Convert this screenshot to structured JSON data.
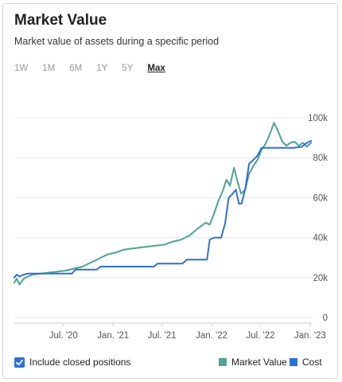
{
  "header": {
    "title": "Market Value",
    "subtitle": "Market value of assets during a specific period"
  },
  "ranges": [
    {
      "label": "1W",
      "active": false
    },
    {
      "label": "1M",
      "active": false
    },
    {
      "label": "6M",
      "active": false
    },
    {
      "label": "1Y",
      "active": false
    },
    {
      "label": "5Y",
      "active": false
    },
    {
      "label": "Max",
      "active": true
    }
  ],
  "footer": {
    "include_closed_label": "Include closed positions",
    "include_closed_checked": true
  },
  "colors": {
    "market_value": "#4ea393",
    "cost": "#2f6fd6",
    "grid": "#e8e8e8",
    "axis_text": "#555555"
  },
  "chart_data": {
    "type": "line",
    "xlabel": "",
    "ylabel": "",
    "ylim": [
      0,
      100000
    ],
    "yticks": [
      0,
      20000,
      40000,
      60000,
      80000,
      100000
    ],
    "ytick_labels": [
      "0",
      "20k",
      "40k",
      "60k",
      "80k",
      "100k"
    ],
    "xlim": [
      "2020-01-01",
      "2023-01-10"
    ],
    "xticks": [
      "2020-07-01",
      "2021-01-01",
      "2021-07-01",
      "2022-01-01",
      "2022-07-01",
      "2023-01-01"
    ],
    "xtick_labels": [
      "Jul. '20",
      "Jan. '21",
      "Jul. '21",
      "Jan. '22",
      "Jul. '22",
      "Jan. '23"
    ],
    "legend_position": "bottom-right",
    "grid": true,
    "series": [
      {
        "name": "Market Value",
        "color": "#4ea393",
        "points": [
          [
            "2020-01-01",
            17500
          ],
          [
            "2020-01-10",
            19500
          ],
          [
            "2020-01-20",
            16500
          ],
          [
            "2020-02-05",
            19500
          ],
          [
            "2020-02-20",
            20500
          ],
          [
            "2020-03-10",
            21500
          ],
          [
            "2020-04-10",
            22000
          ],
          [
            "2020-05-10",
            22500
          ],
          [
            "2020-06-10",
            23000
          ],
          [
            "2020-07-10",
            23500
          ],
          [
            "2020-08-10",
            24500
          ],
          [
            "2020-09-10",
            25500
          ],
          [
            "2020-10-10",
            27500
          ],
          [
            "2020-11-10",
            29500
          ],
          [
            "2020-12-10",
            31500
          ],
          [
            "2021-01-10",
            32500
          ],
          [
            "2021-02-10",
            34000
          ],
          [
            "2021-03-10",
            34500
          ],
          [
            "2021-04-10",
            35000
          ],
          [
            "2021-05-10",
            35500
          ],
          [
            "2021-06-10",
            36000
          ],
          [
            "2021-07-10",
            36500
          ],
          [
            "2021-08-10",
            38000
          ],
          [
            "2021-09-10",
            39000
          ],
          [
            "2021-10-10",
            41000
          ],
          [
            "2021-11-10",
            44500
          ],
          [
            "2021-12-10",
            47500
          ],
          [
            "2021-12-25",
            46500
          ],
          [
            "2022-01-10",
            52000
          ],
          [
            "2022-01-25",
            58000
          ],
          [
            "2022-02-10",
            63000
          ],
          [
            "2022-02-25",
            69000
          ],
          [
            "2022-03-10",
            66000
          ],
          [
            "2022-03-25",
            75000
          ],
          [
            "2022-04-05",
            69000
          ],
          [
            "2022-04-20",
            62000
          ],
          [
            "2022-05-05",
            64000
          ],
          [
            "2022-05-20",
            72000
          ],
          [
            "2022-06-05",
            76000
          ],
          [
            "2022-06-20",
            79000
          ],
          [
            "2022-07-05",
            84000
          ],
          [
            "2022-07-20",
            87000
          ],
          [
            "2022-08-05",
            92000
          ],
          [
            "2022-08-20",
            97500
          ],
          [
            "2022-09-05",
            93000
          ],
          [
            "2022-09-20",
            88000
          ],
          [
            "2022-10-05",
            86000
          ],
          [
            "2022-10-20",
            87500
          ],
          [
            "2022-11-05",
            88000
          ],
          [
            "2022-11-20",
            86000
          ],
          [
            "2022-12-05",
            87500
          ],
          [
            "2022-12-20",
            85500
          ],
          [
            "2023-01-05",
            87500
          ]
        ]
      },
      {
        "name": "Cost",
        "color": "#2f6fd6",
        "points": [
          [
            "2020-01-01",
            20000
          ],
          [
            "2020-01-10",
            21500
          ],
          [
            "2020-01-20",
            20500
          ],
          [
            "2020-02-05",
            21500
          ],
          [
            "2020-02-20",
            22000
          ],
          [
            "2020-04-01",
            22000
          ],
          [
            "2020-08-01",
            22000
          ],
          [
            "2020-08-15",
            24000
          ],
          [
            "2020-11-01",
            24000
          ],
          [
            "2020-11-15",
            25500
          ],
          [
            "2021-02-15",
            25500
          ],
          [
            "2021-06-01",
            25500
          ],
          [
            "2021-06-15",
            27000
          ],
          [
            "2021-09-15",
            27000
          ],
          [
            "2021-10-01",
            29000
          ],
          [
            "2021-12-15",
            29000
          ],
          [
            "2021-12-25",
            39000
          ],
          [
            "2022-01-10",
            40000
          ],
          [
            "2022-02-05",
            40000
          ],
          [
            "2022-02-20",
            47000
          ],
          [
            "2022-03-05",
            60000
          ],
          [
            "2022-03-20",
            62000
          ],
          [
            "2022-04-01",
            64000
          ],
          [
            "2022-04-12",
            57000
          ],
          [
            "2022-04-22",
            57000
          ],
          [
            "2022-05-05",
            64000
          ],
          [
            "2022-05-20",
            77000
          ],
          [
            "2022-06-05",
            79000
          ],
          [
            "2022-06-20",
            81000
          ],
          [
            "2022-07-05",
            85000
          ],
          [
            "2022-08-01",
            85000
          ],
          [
            "2022-09-01",
            85000
          ],
          [
            "2022-10-01",
            85000
          ],
          [
            "2022-11-01",
            85000
          ],
          [
            "2022-12-01",
            85500
          ],
          [
            "2022-12-20",
            87500
          ],
          [
            "2023-01-05",
            88500
          ]
        ]
      }
    ]
  }
}
